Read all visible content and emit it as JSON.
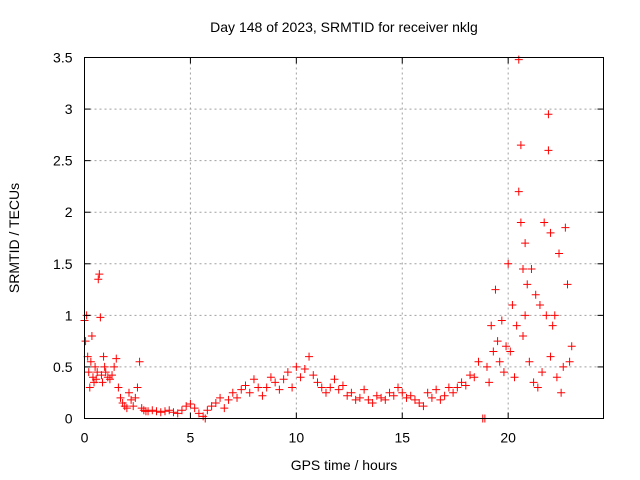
{
  "chart_data": {
    "type": "scatter",
    "title": "Day 148 of 2023, SRMTID for receiver nklg",
    "xlabel": "GPS time / hours",
    "ylabel": "SRMTID / TECUs",
    "xlim": [
      0,
      24.5
    ],
    "ylim": [
      0,
      3.5
    ],
    "xticks": [
      0,
      5,
      10,
      15,
      20
    ],
    "xtick_labels": [
      "0",
      "5",
      "10",
      "15",
      "20"
    ],
    "yticks": [
      0,
      0.5,
      1,
      1.5,
      2,
      2.5,
      3,
      3.5
    ],
    "ytick_labels": [
      "0",
      "0.5",
      "1",
      "1.5",
      "2",
      "2.5",
      "3",
      "3.5"
    ],
    "grid": true,
    "legend": "none",
    "marker": "+",
    "color": "#ff0000",
    "series": [
      {
        "name": "SRMTID",
        "x": [
          0.0,
          0.05,
          0.1,
          0.15,
          0.2,
          0.25,
          0.3,
          0.35,
          0.4,
          0.45,
          0.5,
          0.55,
          0.6,
          0.65,
          0.7,
          0.75,
          0.8,
          0.85,
          0.9,
          0.95,
          1.0,
          1.1,
          1.2,
          1.3,
          1.4,
          1.5,
          1.6,
          1.7,
          1.8,
          1.9,
          2.0,
          2.1,
          2.2,
          2.3,
          2.4,
          2.5,
          2.6,
          2.7,
          2.8,
          2.9,
          3.0,
          3.2,
          3.4,
          3.6,
          3.8,
          4.0,
          4.2,
          4.4,
          4.6,
          4.8,
          5.0,
          5.2,
          5.4,
          5.6,
          5.7,
          5.8,
          6.0,
          6.2,
          6.4,
          6.6,
          6.8,
          7.0,
          7.2,
          7.4,
          7.6,
          7.8,
          8.0,
          8.2,
          8.4,
          8.6,
          8.8,
          9.0,
          9.2,
          9.4,
          9.6,
          9.8,
          10.0,
          10.2,
          10.4,
          10.6,
          10.8,
          11.0,
          11.2,
          11.4,
          11.6,
          11.8,
          12.0,
          12.2,
          12.4,
          12.6,
          12.8,
          13.0,
          13.2,
          13.4,
          13.6,
          13.8,
          14.0,
          14.2,
          14.4,
          14.6,
          14.8,
          15.0,
          15.2,
          15.4,
          15.6,
          15.8,
          16.0,
          16.2,
          16.4,
          16.6,
          16.8,
          17.0,
          17.2,
          17.4,
          17.6,
          17.8,
          18.0,
          18.2,
          18.4,
          18.6,
          18.8,
          18.9,
          19.0,
          19.1,
          19.2,
          19.3,
          19.4,
          19.5,
          19.6,
          19.7,
          19.8,
          19.9,
          20.0,
          20.1,
          20.2,
          20.3,
          20.4,
          20.5,
          20.5,
          20.6,
          20.6,
          20.7,
          20.7,
          20.8,
          20.8,
          20.9,
          21.0,
          21.1,
          21.2,
          21.3,
          21.4,
          21.5,
          21.6,
          21.7,
          21.8,
          21.9,
          21.9,
          22.0,
          22.0,
          22.1,
          22.2,
          22.3,
          22.4,
          22.5,
          22.6,
          22.7,
          22.8,
          22.9,
          23.0
        ],
        "y": [
          0.95,
          0.75,
          1.0,
          0.6,
          0.45,
          0.3,
          0.55,
          0.8,
          0.4,
          0.35,
          0.5,
          0.38,
          0.45,
          1.35,
          1.4,
          0.98,
          0.42,
          0.35,
          0.6,
          0.5,
          0.45,
          0.4,
          0.38,
          0.42,
          0.5,
          0.58,
          0.3,
          0.2,
          0.15,
          0.12,
          0.1,
          0.25,
          0.18,
          0.12,
          0.2,
          0.3,
          0.55,
          0.1,
          0.08,
          0.07,
          0.07,
          0.08,
          0.07,
          0.06,
          0.07,
          0.08,
          0.06,
          0.05,
          0.08,
          0.12,
          0.14,
          0.1,
          0.05,
          0.02,
          0.0,
          0.08,
          0.12,
          0.15,
          0.2,
          0.1,
          0.18,
          0.25,
          0.2,
          0.28,
          0.32,
          0.25,
          0.38,
          0.3,
          0.22,
          0.3,
          0.4,
          0.35,
          0.28,
          0.38,
          0.45,
          0.3,
          0.5,
          0.4,
          0.48,
          0.6,
          0.42,
          0.35,
          0.3,
          0.25,
          0.3,
          0.38,
          0.28,
          0.32,
          0.22,
          0.25,
          0.18,
          0.2,
          0.28,
          0.18,
          0.15,
          0.22,
          0.2,
          0.18,
          0.25,
          0.22,
          0.3,
          0.25,
          0.2,
          0.22,
          0.18,
          0.15,
          0.12,
          0.25,
          0.2,
          0.28,
          0.18,
          0.22,
          0.3,
          0.25,
          0.3,
          0.35,
          0.32,
          0.42,
          0.4,
          0.55,
          0.0,
          0.0,
          0.5,
          0.35,
          0.9,
          0.65,
          1.25,
          0.75,
          0.55,
          0.95,
          0.45,
          0.7,
          1.5,
          0.65,
          1.1,
          0.4,
          0.9,
          3.48,
          2.2,
          2.65,
          1.9,
          1.45,
          0.8,
          1.7,
          1.0,
          1.3,
          0.55,
          1.45,
          0.35,
          1.2,
          0.3,
          1.1,
          0.45,
          1.9,
          1.0,
          2.95,
          2.6,
          0.6,
          1.8,
          0.9,
          1.0,
          0.4,
          1.6,
          0.25,
          0.5,
          1.85,
          1.3,
          0.55,
          0.7
        ],
        "note": "approximate subset of the plotted points"
      }
    ]
  }
}
